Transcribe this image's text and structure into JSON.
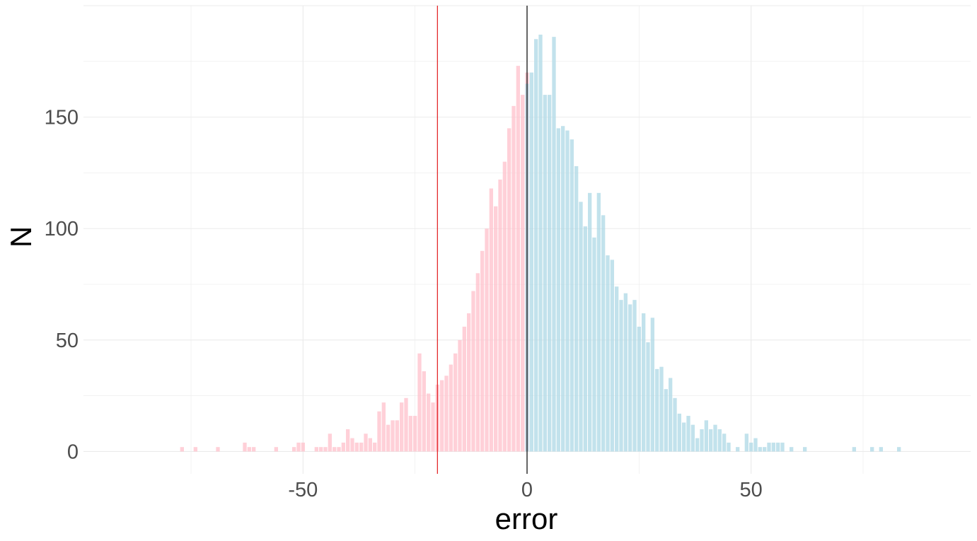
{
  "chart_data": {
    "type": "bar",
    "title": "",
    "xlabel": "error",
    "ylabel": "N",
    "xlim": [
      -99,
      99
    ],
    "ylim": [
      -10,
      200
    ],
    "x_ticks": [
      -50,
      0,
      50
    ],
    "y_ticks": [
      0,
      50,
      100,
      150
    ],
    "grid": true,
    "legend": "none",
    "vlines": [
      {
        "x": -20,
        "color": "#e31a1c"
      },
      {
        "x": 0,
        "color": "#000000"
      }
    ],
    "series": [
      {
        "color": "#ffc0cb",
        "x": [
          -77,
          -74,
          -69,
          -63,
          -62,
          -61,
          -56,
          -52,
          -51,
          -50,
          -47,
          -46,
          -45,
          -44,
          -43,
          -42,
          -41,
          -40,
          -39,
          -38,
          -37,
          -36,
          -35,
          -34,
          -33,
          -32,
          -31,
          -30,
          -29,
          -28,
          -27,
          -26,
          -25,
          -24,
          -23,
          -22,
          -21,
          -20,
          -19,
          -18,
          -17,
          -16,
          -15,
          -14,
          -13,
          -12,
          -11,
          -10,
          -9,
          -8,
          -7,
          -6,
          -5,
          -4,
          -3,
          -2,
          -1,
          0
        ],
        "values": [
          2,
          2,
          2,
          4,
          2,
          2,
          2,
          2,
          4,
          4,
          2,
          2,
          2,
          8,
          2,
          2,
          4,
          10,
          6,
          4,
          4,
          8,
          6,
          4,
          18,
          22,
          12,
          14,
          14,
          22,
          24,
          16,
          16,
          44,
          36,
          26,
          22,
          30,
          32,
          34,
          39,
          44,
          50,
          56,
          62,
          72,
          80,
          90,
          100,
          118,
          110,
          122,
          130,
          145,
          155,
          173,
          160,
          170
        ]
      },
      {
        "color": "#add8e6",
        "x": [
          0,
          1,
          2,
          3,
          4,
          5,
          6,
          7,
          8,
          9,
          10,
          11,
          12,
          13,
          14,
          15,
          16,
          17,
          18,
          19,
          20,
          21,
          22,
          23,
          24,
          25,
          26,
          27,
          28,
          29,
          30,
          31,
          32,
          33,
          34,
          35,
          36,
          37,
          38,
          39,
          40,
          41,
          42,
          43,
          44,
          45,
          47,
          49,
          50,
          51,
          52,
          53,
          54,
          55,
          56,
          57,
          59,
          62,
          73,
          77,
          79,
          83
        ],
        "values": [
          165,
          170,
          185,
          187,
          160,
          160,
          186,
          145,
          146,
          144,
          140,
          128,
          112,
          101,
          116,
          96,
          116,
          106,
          88,
          86,
          74,
          68,
          71,
          66,
          68,
          56,
          62,
          49,
          60,
          37,
          38,
          28,
          33,
          24,
          17,
          13,
          16,
          12,
          6,
          10,
          14,
          10,
          12,
          10,
          8,
          4,
          2,
          8,
          4,
          6,
          2,
          2,
          4,
          4,
          4,
          4,
          2,
          2,
          2,
          2,
          2,
          2
        ]
      }
    ]
  }
}
